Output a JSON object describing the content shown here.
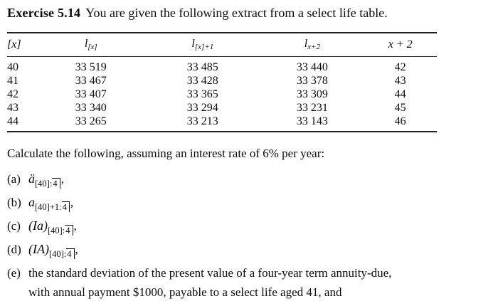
{
  "colors": {
    "background": "#ffffff",
    "text": "#0c0c0c",
    "rule": "#222222"
  },
  "title": {
    "bold": "Exercise 5.14",
    "text": "You are given the following extract from a select life table."
  },
  "table": {
    "headers": [
      {
        "text": "[x]"
      },
      {
        "base": "l",
        "sub": "[x]"
      },
      {
        "base": "l",
        "sub": "[x]+1"
      },
      {
        "base": "l",
        "sub": "x+2"
      },
      {
        "text": "x + 2"
      }
    ],
    "rows": [
      [
        "40",
        "33 519",
        "33 485",
        "33 440",
        "42"
      ],
      [
        "41",
        "33 467",
        "33 428",
        "33 378",
        "43"
      ],
      [
        "42",
        "33 407",
        "33 365",
        "33 309",
        "44"
      ],
      [
        "43",
        "33 340",
        "33 294",
        "33 231",
        "45"
      ],
      [
        "44",
        "33 265",
        "33 213",
        "33 143",
        "46"
      ]
    ]
  },
  "paragraph": "Calculate the following, assuming an interest rate of 6% per year:",
  "items": [
    {
      "label": "(a)",
      "base": "ä",
      "sub": "[40]:",
      "term": "4",
      "tail": ","
    },
    {
      "label": "(b)",
      "base": "a",
      "sub": "[40]+1:",
      "term": "4",
      "tail": ","
    },
    {
      "label": "(c)",
      "base": "(Ia)",
      "sub": "[40]:",
      "term": "4",
      "tail": ","
    },
    {
      "label": "(d)",
      "base": "(IA)",
      "sub": "[40]:",
      "term": "4",
      "tail": ","
    }
  ],
  "item_e": {
    "label": "(e)",
    "line1": "the standard deviation of the present value of a four-year term annuity-due,",
    "line2": "with annual payment $1000, payable to a select life aged 41, and"
  }
}
